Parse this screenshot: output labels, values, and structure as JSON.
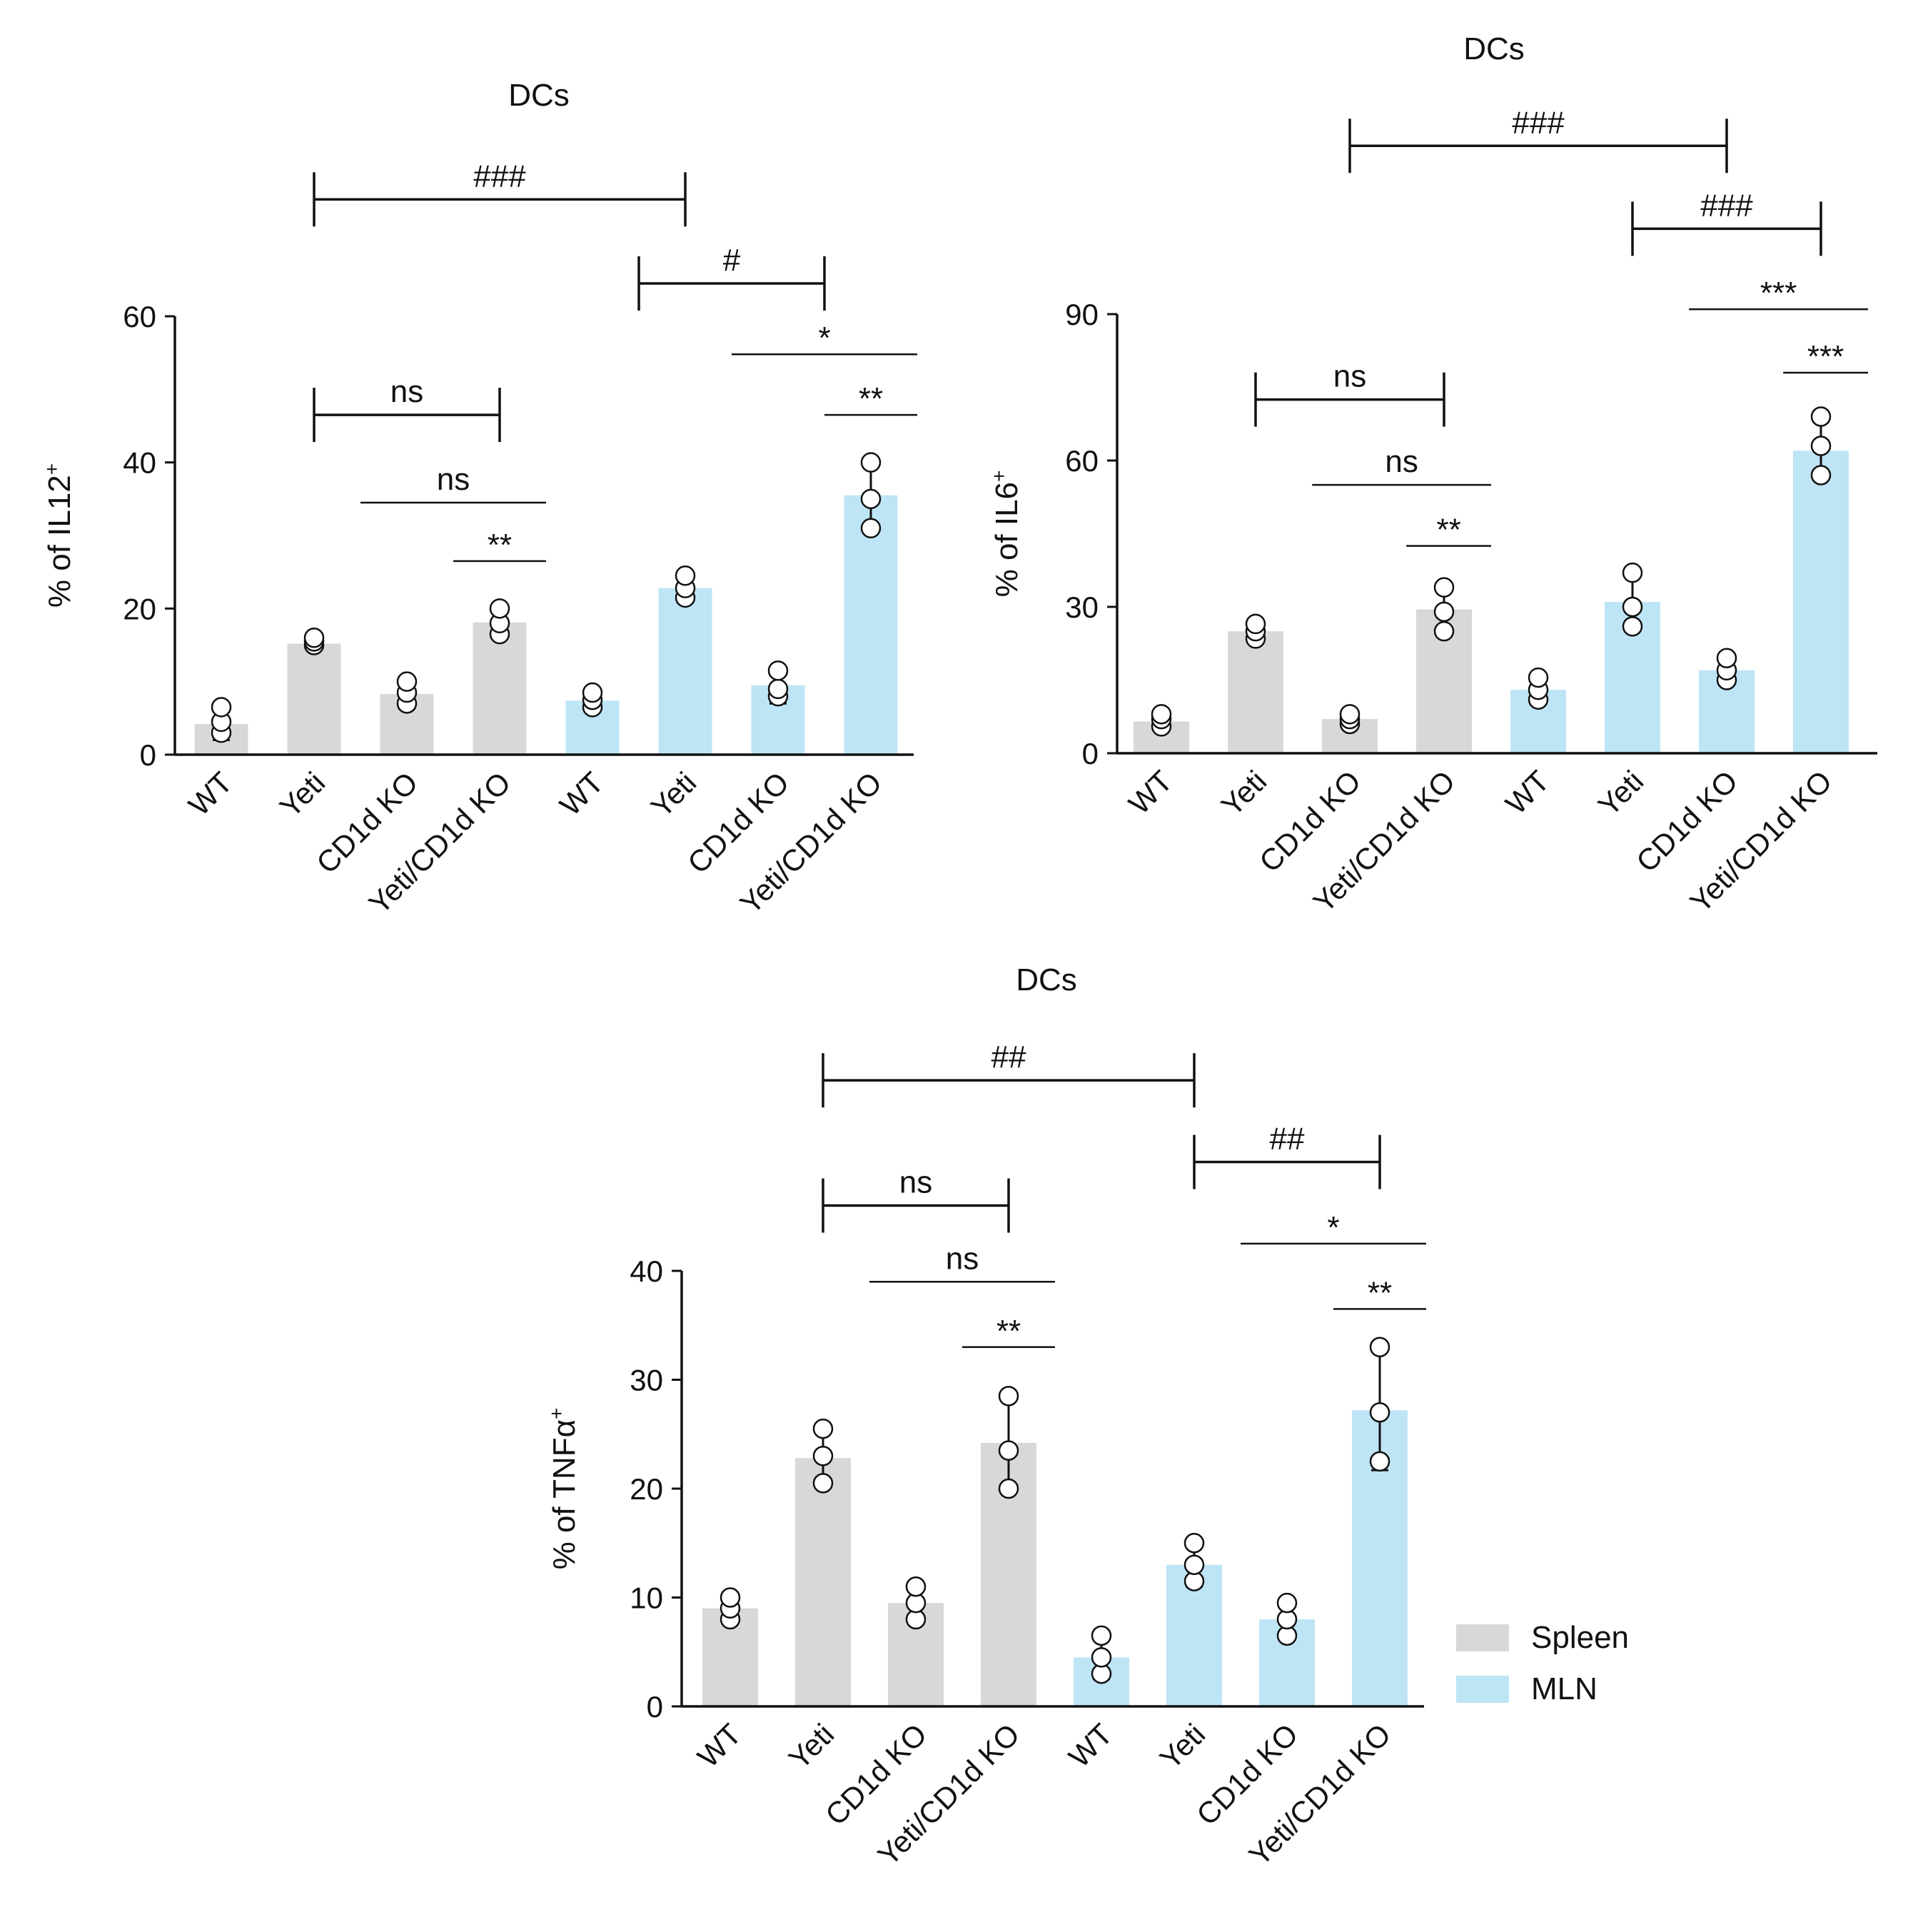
{
  "colors": {
    "spleen": "#d8d8d8",
    "mln": "#bee5f6",
    "axis": "#111111"
  },
  "legend": [
    {
      "label": "Spleen",
      "color": "#d8d8d8"
    },
    {
      "label": "MLN",
      "color": "#bee5f6"
    }
  ],
  "chart_data": [
    {
      "type": "bar",
      "title": "DCs",
      "ylabel": "% of IL12",
      "ylabel_sup": "+",
      "ylim": [
        0,
        60
      ],
      "yticks": [
        0,
        20,
        40,
        60
      ],
      "categories": [
        "WT",
        "Yeti",
        "CD1d KO",
        "Yeti/CD1d KO",
        "WT",
        "Yeti",
        "CD1d KO",
        "Yeti/CD1d KO"
      ],
      "groups": [
        "Spleen",
        "Spleen",
        "Spleen",
        "Spleen",
        "MLN",
        "MLN",
        "MLN",
        "MLN"
      ],
      "values": [
        4.2,
        15.2,
        8.3,
        18.1,
        7.4,
        22.8,
        9.5,
        35.5
      ],
      "errors": [
        2.2,
        0.8,
        2.0,
        2.0,
        1.5,
        2.0,
        2.5,
        5.0
      ],
      "points": [
        [
          3.0,
          4.5,
          6.5
        ],
        [
          15.0,
          15.5,
          16.0
        ],
        [
          7.0,
          8.5,
          10.0
        ],
        [
          16.5,
          18.0,
          20.0
        ],
        [
          6.5,
          7.5,
          8.5
        ],
        [
          21.5,
          22.8,
          24.5
        ],
        [
          8.0,
          9.0,
          11.5
        ],
        [
          31.0,
          35.0,
          40.0
        ]
      ],
      "comparisons": [
        {
          "a": 1,
          "b": 3,
          "label": "ns",
          "style": "bracket",
          "y": 46.5
        },
        {
          "a": 1.5,
          "b": 3.5,
          "label": "ns",
          "style": "line",
          "y": 34.5
        },
        {
          "a": 2.5,
          "b": 3.5,
          "label": "**",
          "style": "line",
          "y": 26.5
        },
        {
          "a": 1,
          "b": 5,
          "label": "###",
          "style": "bracket",
          "y": 76.0
        },
        {
          "a": 4.5,
          "b": 6.5,
          "label": "#",
          "style": "bracket",
          "y": 64.5
        },
        {
          "a": 5.5,
          "b": 7.5,
          "label": "*",
          "style": "line",
          "y": 54.8
        },
        {
          "a": 6.5,
          "b": 7.5,
          "label": "**",
          "style": "line",
          "y": 46.5
        }
      ]
    },
    {
      "type": "bar",
      "title": "DCs",
      "ylabel": "% of IL6",
      "ylabel_sup": "+",
      "ylim": [
        0,
        90
      ],
      "yticks": [
        0,
        30,
        60,
        90
      ],
      "categories": [
        "WT",
        "Yeti",
        "CD1d KO",
        "Yeti/CD1d KO",
        "WT",
        "Yeti",
        "CD1d KO",
        "Yeti/CD1d KO"
      ],
      "groups": [
        "Spleen",
        "Spleen",
        "Spleen",
        "Spleen",
        "MLN",
        "MLN",
        "MLN",
        "MLN"
      ],
      "values": [
        6.5,
        25.0,
        7.0,
        29.5,
        13.0,
        31.0,
        17.0,
        62.0
      ],
      "errors": [
        1.5,
        2.0,
        1.5,
        4.5,
        2.5,
        6.0,
        2.5,
        6.0
      ],
      "points": [
        [
          5.5,
          7.0,
          8.0
        ],
        [
          23.5,
          25.0,
          26.5
        ],
        [
          6.0,
          7.0,
          8.0
        ],
        [
          25.0,
          29.0,
          34.0
        ],
        [
          11.0,
          13.0,
          15.5
        ],
        [
          26.0,
          30.0,
          37.0
        ],
        [
          15.0,
          17.0,
          19.5
        ],
        [
          57.0,
          63.0,
          69.0
        ]
      ],
      "comparisons": [
        {
          "a": 1,
          "b": 3,
          "label": "ns",
          "style": "bracket",
          "y": 72.5
        },
        {
          "a": 1.6,
          "b": 3.5,
          "label": "ns",
          "style": "line",
          "y": 55.0
        },
        {
          "a": 2.6,
          "b": 3.5,
          "label": "**",
          "style": "line",
          "y": 42.5
        },
        {
          "a": 2,
          "b": 6,
          "label": "###",
          "style": "bracket",
          "y": 124.5
        },
        {
          "a": 5,
          "b": 7,
          "label": "###",
          "style": "bracket",
          "y": 107.5
        },
        {
          "a": 5.6,
          "b": 7.5,
          "label": "***",
          "style": "line",
          "y": 91.0
        },
        {
          "a": 6.6,
          "b": 7.5,
          "label": "***",
          "style": "line",
          "y": 78.0
        }
      ]
    },
    {
      "type": "bar",
      "title": "DCs",
      "ylabel": "% of TNFα",
      "ylabel_sup": "+",
      "ylim": [
        0,
        40
      ],
      "yticks": [
        0,
        10,
        20,
        30,
        40
      ],
      "categories": [
        "WT",
        "Yeti",
        "CD1d KO",
        "Yeti/CD1d KO",
        "WT",
        "Yeti",
        "CD1d KO",
        "Yeti/CD1d KO"
      ],
      "groups": [
        "Spleen",
        "Spleen",
        "Spleen",
        "Spleen",
        "MLN",
        "MLN",
        "MLN",
        "MLN"
      ],
      "values": [
        9.0,
        22.8,
        9.5,
        24.2,
        4.5,
        13.0,
        8.0,
        27.2
      ],
      "errors": [
        1.0,
        2.5,
        1.5,
        4.5,
        2.0,
        2.0,
        1.5,
        5.5
      ],
      "points": [
        [
          8.0,
          9.0,
          10.0
        ],
        [
          20.5,
          23.0,
          25.5
        ],
        [
          8.0,
          9.5,
          11.0
        ],
        [
          20.0,
          23.5,
          28.5
        ],
        [
          3.0,
          4.5,
          6.5
        ],
        [
          11.5,
          13.0,
          15.0
        ],
        [
          6.5,
          8.0,
          9.5
        ],
        [
          22.5,
          27.0,
          33.0
        ]
      ],
      "comparisons": [
        {
          "a": 1,
          "b": 3,
          "label": "ns",
          "style": "bracket",
          "y": 46.0
        },
        {
          "a": 1.5,
          "b": 3.5,
          "label": "ns",
          "style": "line",
          "y": 39.0
        },
        {
          "a": 2.5,
          "b": 3.5,
          "label": "**",
          "style": "line",
          "y": 33.0
        },
        {
          "a": 1,
          "b": 5,
          "label": "##",
          "style": "bracket",
          "y": 57.5
        },
        {
          "a": 5,
          "b": 7,
          "label": "##",
          "style": "bracket",
          "y": 50.0
        },
        {
          "a": 5.5,
          "b": 7.5,
          "label": "*",
          "style": "line",
          "y": 42.5
        },
        {
          "a": 6.5,
          "b": 7.5,
          "label": "**",
          "style": "line",
          "y": 36.5
        }
      ]
    }
  ]
}
